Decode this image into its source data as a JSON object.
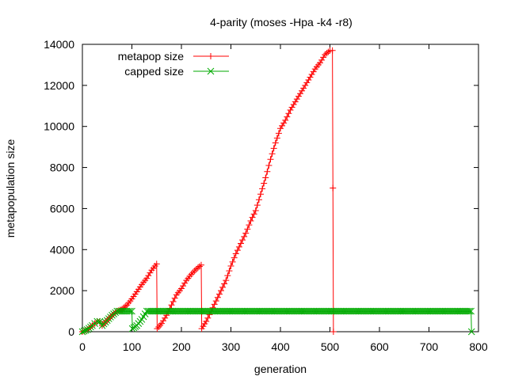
{
  "chart_data": {
    "type": "line",
    "title": "4-parity (moses -Hpa -k4 -r8)",
    "xlabel": "generation",
    "ylabel": "metapopulation size",
    "xlim": [
      0,
      800
    ],
    "ylim": [
      0,
      14000
    ],
    "xticks": [
      0,
      100,
      200,
      300,
      400,
      500,
      600,
      700,
      800
    ],
    "yticks": [
      0,
      2000,
      4000,
      6000,
      8000,
      10000,
      12000,
      14000
    ],
    "grid": false,
    "legend_position": "top-left",
    "colors": {
      "metapop": "#ff0000",
      "capped": "#00aa00"
    },
    "series": [
      {
        "name": "metapop size",
        "marker": "plus",
        "color": "#ff0000",
        "points": [
          [
            0,
            0
          ],
          [
            10,
            100
          ],
          [
            20,
            300
          ],
          [
            25,
            400
          ],
          [
            30,
            500
          ],
          [
            35,
            500
          ],
          [
            40,
            300
          ],
          [
            50,
            550
          ],
          [
            60,
            800
          ],
          [
            70,
            1000
          ],
          [
            80,
            1100
          ],
          [
            90,
            1300
          ],
          [
            100,
            1600
          ],
          [
            110,
            1950
          ],
          [
            120,
            2300
          ],
          [
            130,
            2600
          ],
          [
            140,
            3000
          ],
          [
            150,
            3300
          ],
          [
            151,
            150
          ],
          [
            160,
            400
          ],
          [
            170,
            800
          ],
          [
            180,
            1300
          ],
          [
            190,
            1800
          ],
          [
            200,
            2100
          ],
          [
            210,
            2500
          ],
          [
            220,
            2800
          ],
          [
            230,
            3050
          ],
          [
            240,
            3250
          ],
          [
            241,
            150
          ],
          [
            250,
            500
          ],
          [
            260,
            1000
          ],
          [
            270,
            1500
          ],
          [
            280,
            2000
          ],
          [
            290,
            2500
          ],
          [
            300,
            3200
          ],
          [
            310,
            3800
          ],
          [
            320,
            4300
          ],
          [
            330,
            4800
          ],
          [
            340,
            5400
          ],
          [
            350,
            5900
          ],
          [
            360,
            6700
          ],
          [
            370,
            7500
          ],
          [
            380,
            8400
          ],
          [
            390,
            9200
          ],
          [
            400,
            9900
          ],
          [
            410,
            10300
          ],
          [
            420,
            10800
          ],
          [
            430,
            11200
          ],
          [
            440,
            11600
          ],
          [
            450,
            12000
          ],
          [
            460,
            12400
          ],
          [
            470,
            12800
          ],
          [
            480,
            13100
          ],
          [
            490,
            13500
          ],
          [
            500,
            13700
          ],
          [
            505,
            13700
          ],
          [
            506,
            7000
          ],
          [
            507,
            0
          ]
        ]
      },
      {
        "name": "capped size",
        "marker": "cross",
        "color": "#00aa00",
        "points": [
          [
            0,
            0
          ],
          [
            10,
            100
          ],
          [
            20,
            300
          ],
          [
            25,
            400
          ],
          [
            30,
            500
          ],
          [
            35,
            500
          ],
          [
            40,
            300
          ],
          [
            50,
            550
          ],
          [
            60,
            800
          ],
          [
            70,
            1000
          ],
          [
            80,
            1000
          ],
          [
            90,
            1000
          ],
          [
            100,
            1000
          ],
          [
            101,
            150
          ],
          [
            110,
            300
          ],
          [
            120,
            600
          ],
          [
            130,
            1000
          ],
          [
            200,
            1000
          ],
          [
            300,
            1000
          ],
          [
            400,
            1000
          ],
          [
            500,
            1000
          ],
          [
            600,
            1000
          ],
          [
            700,
            1000
          ],
          [
            785,
            1000
          ],
          [
            786,
            0
          ]
        ]
      }
    ]
  }
}
